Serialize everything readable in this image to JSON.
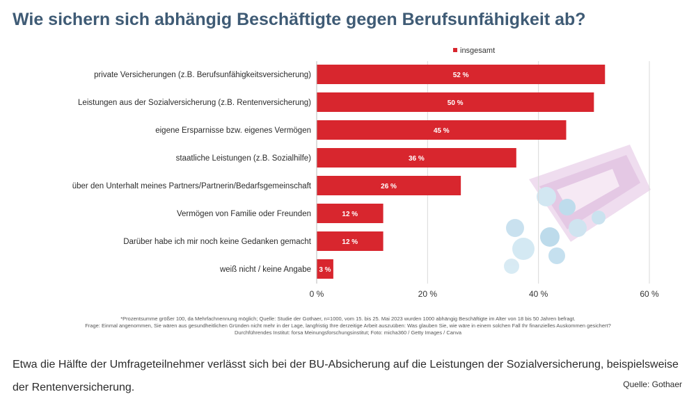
{
  "headline": "Wie sichern sich abhängig Beschäftigte gegen Berufsunfähigkeit ab?",
  "chart_data": {
    "type": "bar",
    "orientation": "horizontal",
    "categories": [
      "private Versicherungen (z.B. Berufsunfähigkeitsversicherung)",
      "Leistungen aus der Sozialversicherung (z.B. Rentenversicherung)",
      "eigene Ersparnisse bzw. eigenes Vermögen",
      "staatliche Leistungen (z.B. Sozialhilfe)",
      "über den Unterhalt meines Partners/Partnerin/Bedarfsgemeinschaft",
      "Vermögen von Familie oder Freunden",
      "Darüber habe ich mir noch keine Gedanken gemacht",
      "weiß nicht / keine Angabe"
    ],
    "series": [
      {
        "name": "insgesamt",
        "values": [
          52,
          50,
          45,
          36,
          26,
          12,
          12,
          3
        ],
        "labels": [
          "52 %",
          "50 %",
          "45 %",
          "36 %",
          "26 %",
          "12 %",
          "12 %",
          "3 %"
        ],
        "color": "#d8262e"
      }
    ],
    "xlim": [
      0,
      60
    ],
    "xticks": [
      0,
      20,
      40,
      60
    ],
    "xtick_labels": [
      "0 %",
      "20 %",
      "40 %",
      "60 %"
    ],
    "grid": true,
    "legend_position": "top"
  },
  "footnotes": [
    "*Prozentsumme größer 100, da Mehrfachnennung möglich; Quelle: Studie der Gothaer, n=1000, vom 15. bis 25. Mai 2023 wurden 1000 abhängig Beschäftigte im Alter von 18 bis 50 Jahren befragt.",
    "Frage: Einmal angenommen, Sie wären aus gesundheitlichen Gründen nicht mehr in der Lage, langfristig Ihre derzeitige Arbeit auszuüben: Was glauben Sie, wie wäre in einem solchen Fall Ihr finanzielles Auskommen gesichert?",
    "Durchführendes Institut: forsa Meinungsforschungsinstitut; Foto: micha360 / Getty Images / Canva"
  ],
  "caption": "Etwa die Hälfte der Umfrageteilnehmer verlässt sich bei der BU-Absicherung auf die Leistungen der Sozialversicherung, beispielsweise der Rentenversicherung.",
  "source": "Quelle: Gothaer",
  "colors": {
    "bar": "#d8262e",
    "title": "#3f5b75",
    "grid": "#d9d9d9"
  }
}
